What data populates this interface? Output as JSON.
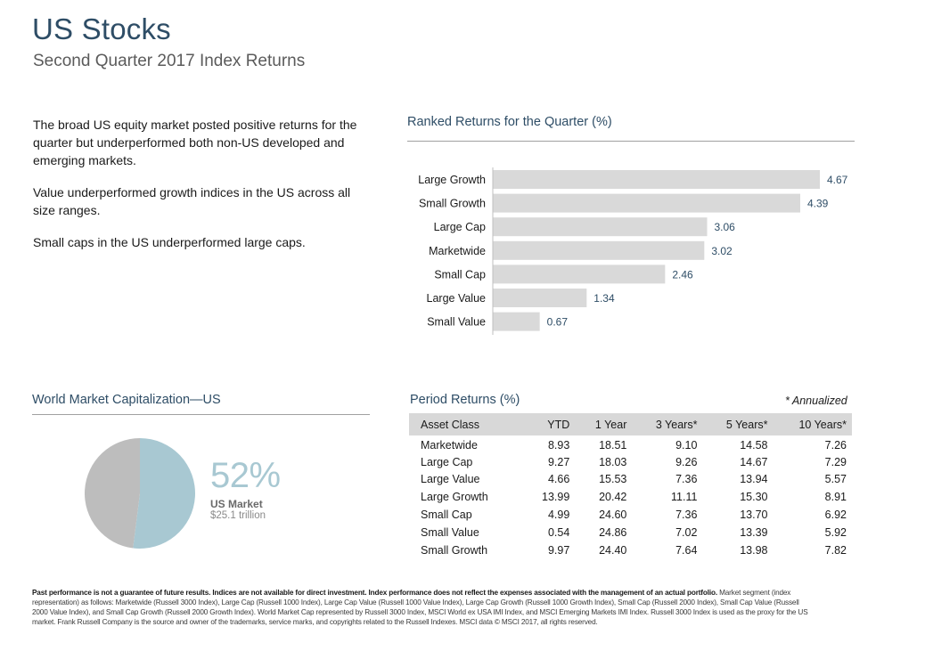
{
  "header": {
    "title": "US Stocks",
    "subtitle": "Second Quarter 2017 Index Returns"
  },
  "bullets": [
    "The broad US equity market posted positive returns for the quarter but underperformed both non-US developed and emerging markets.",
    "Value underperformed growth indices in the US across all size ranges.",
    "Small caps in the US underperformed large caps."
  ],
  "ranked": {
    "heading": "Ranked Returns for the Quarter (%)"
  },
  "chart_data": [
    {
      "type": "bar",
      "orientation": "horizontal",
      "title": "Ranked Returns for the Quarter (%)",
      "categories": [
        "Large Growth",
        "Small Growth",
        "Large Cap",
        "Marketwide",
        "Small Cap",
        "Large Value",
        "Small Value"
      ],
      "values": [
        4.67,
        4.39,
        3.06,
        3.02,
        2.46,
        1.34,
        0.67
      ],
      "xlim": [
        0,
        4.67
      ],
      "grid": false,
      "bar_color": "#d9d9d9",
      "label_color": "#2e4d66"
    },
    {
      "type": "pie",
      "title": "World Market Capitalization—US",
      "slices": [
        {
          "name": "US Market",
          "value": 52,
          "color": "#a8c8d2"
        },
        {
          "name": "",
          "value": 48,
          "color": "#bdbdbd"
        }
      ]
    }
  ],
  "pie": {
    "heading": "World Market Capitalization—US",
    "percent": "52%",
    "label": "US Market",
    "sub": "$25.1 trillion"
  },
  "period": {
    "heading": "Period Returns (%)",
    "note": "* Annualized",
    "columns": [
      "Asset Class",
      "YTD",
      "1 Year",
      "3 Years*",
      "5 Years*",
      "10 Years*"
    ],
    "rows": [
      [
        "Marketwide",
        "8.93",
        "18.51",
        "9.10",
        "14.58",
        "7.26"
      ],
      [
        "Large Cap",
        "9.27",
        "18.03",
        "9.26",
        "14.67",
        "7.29"
      ],
      [
        "Large Value",
        "4.66",
        "15.53",
        "7.36",
        "13.94",
        "5.57"
      ],
      [
        "Large Growth",
        "13.99",
        "20.42",
        "11.11",
        "15.30",
        "8.91"
      ],
      [
        "Small Cap",
        "4.99",
        "24.60",
        "7.36",
        "13.70",
        "6.92"
      ],
      [
        "Small Value",
        "0.54",
        "24.86",
        "7.02",
        "13.39",
        "5.92"
      ],
      [
        "Small Growth",
        "9.97",
        "24.40",
        "7.64",
        "13.98",
        "7.82"
      ]
    ]
  },
  "footnote": {
    "bold": "Past performance is not a guarantee of future results. Indices are not available for direct investment. Index performance does not reflect the expenses associated with the management of an actual portfolio.",
    "body": "Market segment (index representation) as follows: Marketwide (Russell 3000 Index), Large Cap (Russell 1000 Index), Large Cap Value (Russell 1000 Value Index), Large Cap Growth (Russell 1000 Growth Index), Small Cap (Russell 2000 Index), Small Cap Value (Russell 2000 Value Index), and Small Cap Growth (Russell 2000 Growth Index). World Market Cap represented by Russell 3000 Index, MSCI World ex USA IMI Index, and MSCI Emerging Markets IMI Index. Russell 3000 Index is used as the proxy for the US market. Frank Russell Company is the source and owner of the trademarks, service marks, and copyrights related to the Russell Indexes. MSCI data © MSCI 2017, all rights reserved."
  }
}
